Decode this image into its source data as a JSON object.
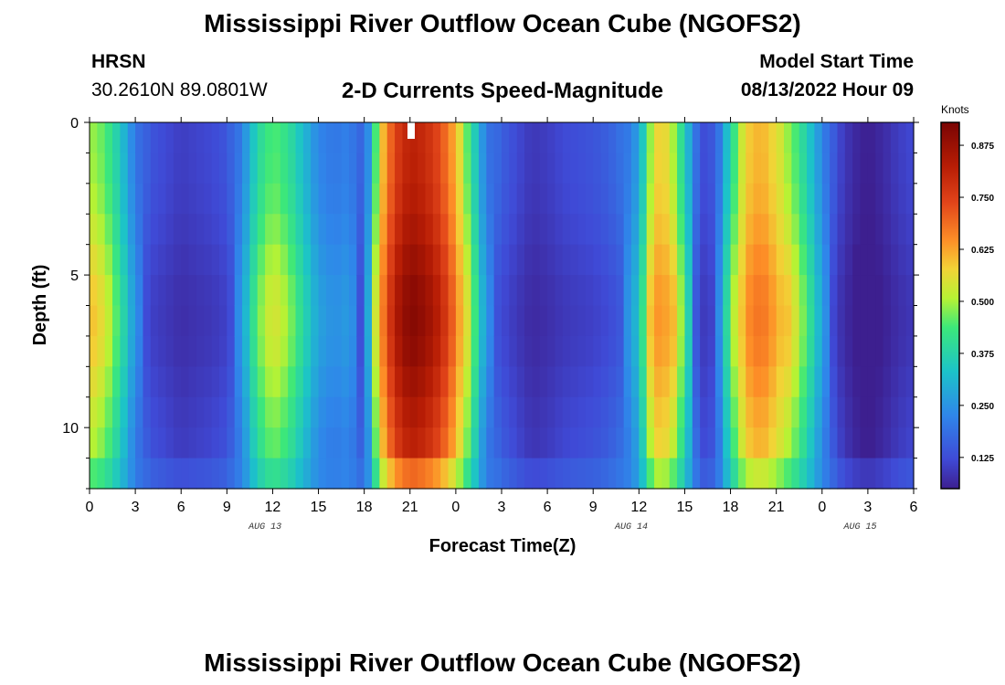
{
  "header": {
    "title": "Mississippi River Outflow Ocean Cube (NGOFS2)",
    "station_name": "HRSN",
    "station_coords": "30.2610N  89.0801W",
    "plot_title": "2-D Currents Speed-Magnitude",
    "model_start_label": "Model Start Time",
    "model_start_value": "08/13/2022 Hour 09"
  },
  "footer": {
    "title": "Mississippi River Outflow Ocean Cube (NGOFS2)"
  },
  "chart_data": {
    "type": "heatmap",
    "title": "2-D Currents Speed-Magnitude",
    "xlabel": "Forecast Time(Z)",
    "ylabel": "Depth (ft)",
    "colorbar_label": "Knots",
    "colorbar_ticks": [
      "0.125",
      "0.250",
      "0.375",
      "0.500",
      "0.625",
      "0.750",
      "0.875"
    ],
    "colorbar_range": [
      0.05,
      0.93
    ],
    "x_range_hours": [
      0,
      54
    ],
    "x_tick_labels": [
      "0",
      "3",
      "6",
      "9",
      "12",
      "15",
      "18",
      "21",
      "0",
      "3",
      "6",
      "9",
      "12",
      "15",
      "18",
      "21",
      "0",
      "3",
      "6"
    ],
    "date_labels": [
      {
        "label": "AUG 13",
        "hour": 11.5
      },
      {
        "label": "AUG 14",
        "hour": 35.5
      },
      {
        "label": "AUG 15",
        "hour": 50.5
      }
    ],
    "y_range_ft": [
      0,
      12
    ],
    "y_tick_labels": [
      "0",
      "5",
      "10"
    ],
    "depth_levels_ft": [
      0.5,
      1.5,
      2.5,
      3.5,
      4.5,
      5.5,
      6.5,
      7.5,
      8.5,
      9.5,
      10.5,
      11.5
    ],
    "time_bins_per_hour": 2,
    "speed_profile_knots": [
      {
        "t": 0,
        "v": 0.55
      },
      {
        "t": 1,
        "v": 0.5
      },
      {
        "t": 2,
        "v": 0.38
      },
      {
        "t": 3,
        "v": 0.22
      },
      {
        "t": 4,
        "v": 0.14
      },
      {
        "t": 5,
        "v": 0.12
      },
      {
        "t": 6,
        "v": 0.1
      },
      {
        "t": 7,
        "v": 0.11
      },
      {
        "t": 8,
        "v": 0.12
      },
      {
        "t": 9,
        "v": 0.14
      },
      {
        "t": 10,
        "v": 0.24
      },
      {
        "t": 11,
        "v": 0.42
      },
      {
        "t": 12,
        "v": 0.5
      },
      {
        "t": 13,
        "v": 0.45
      },
      {
        "t": 14,
        "v": 0.35
      },
      {
        "t": 15,
        "v": 0.25
      },
      {
        "t": 16,
        "v": 0.22
      },
      {
        "t": 17,
        "v": 0.24
      },
      {
        "t": 18,
        "v": 0.15
      },
      {
        "t": 19,
        "v": 0.6
      },
      {
        "t": 20,
        "v": 0.8
      },
      {
        "t": 21,
        "v": 0.88
      },
      {
        "t": 22,
        "v": 0.85
      },
      {
        "t": 23,
        "v": 0.78
      },
      {
        "t": 24,
        "v": 0.65
      },
      {
        "t": 25,
        "v": 0.45
      },
      {
        "t": 26,
        "v": 0.22
      },
      {
        "t": 27,
        "v": 0.16
      },
      {
        "t": 28,
        "v": 0.12
      },
      {
        "t": 29,
        "v": 0.09
      },
      {
        "t": 30,
        "v": 0.1
      },
      {
        "t": 31,
        "v": 0.12
      },
      {
        "t": 32,
        "v": 0.13
      },
      {
        "t": 33,
        "v": 0.14
      },
      {
        "t": 34,
        "v": 0.16
      },
      {
        "t": 35,
        "v": 0.2
      },
      {
        "t": 36,
        "v": 0.3
      },
      {
        "t": 37,
        "v": 0.62
      },
      {
        "t": 38,
        "v": 0.6
      },
      {
        "t": 39,
        "v": 0.4
      },
      {
        "t": 40,
        "v": 0.12
      },
      {
        "t": 41,
        "v": 0.15
      },
      {
        "t": 42,
        "v": 0.42
      },
      {
        "t": 43,
        "v": 0.62
      },
      {
        "t": 44,
        "v": 0.66
      },
      {
        "t": 45,
        "v": 0.6
      },
      {
        "t": 46,
        "v": 0.52
      },
      {
        "t": 47,
        "v": 0.4
      },
      {
        "t": 48,
        "v": 0.25
      },
      {
        "t": 49,
        "v": 0.12
      },
      {
        "t": 50,
        "v": 0.07
      },
      {
        "t": 51,
        "v": 0.05
      },
      {
        "t": 52,
        "v": 0.07
      },
      {
        "t": 53,
        "v": 0.1
      },
      {
        "t": 54,
        "v": 0.12
      }
    ]
  }
}
